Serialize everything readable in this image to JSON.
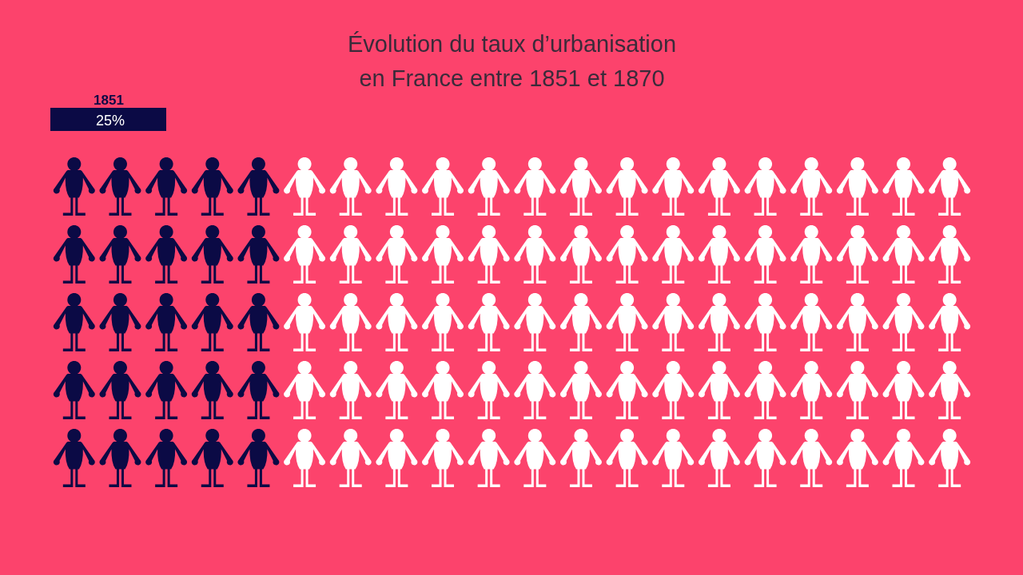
{
  "chart_data": {
    "type": "other",
    "title": "Évolution du taux d’urbanisation\nen France entre 1851 et 1870",
    "categories": [
      "1851"
    ],
    "values": [
      25
    ],
    "value_labels": [
      "25%"
    ],
    "color": "#0b0a45"
  }
}
